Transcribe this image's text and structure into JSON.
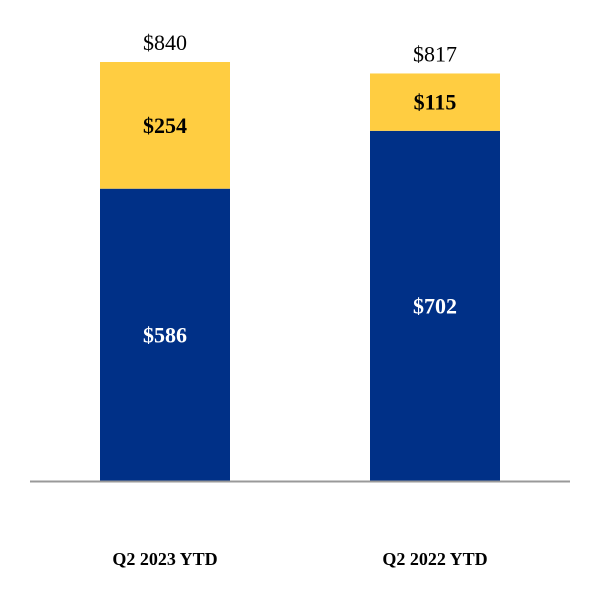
{
  "chart_data": {
    "type": "bar",
    "stacked": true,
    "categories": [
      "Q2 2023 YTD",
      "Q2 2022 YTD"
    ],
    "series": [
      {
        "values": [
          586,
          702
        ]
      },
      {
        "values": [
          254,
          115
        ]
      }
    ],
    "totals": [
      840,
      817
    ],
    "value_prefix": "$",
    "ylim": [
      0,
      840
    ],
    "grid": false,
    "legend": "none"
  },
  "colors": {
    "bottom_segment": "#003087",
    "top_segment": "#FFCD41",
    "bottom_label": "#ffffff",
    "top_label": "#000000",
    "baseline": "#999999"
  }
}
